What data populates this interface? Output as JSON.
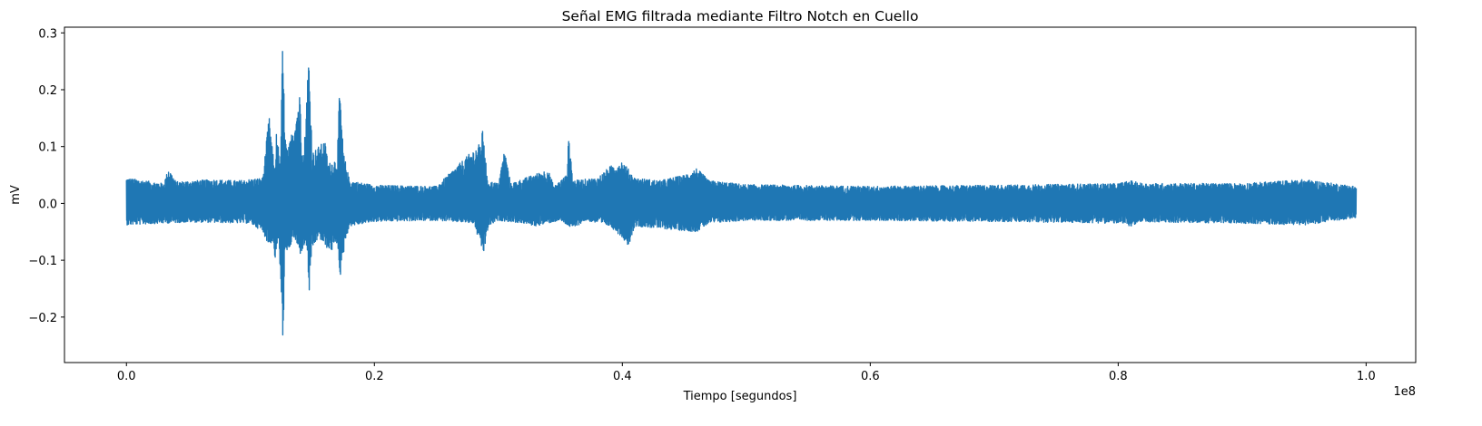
{
  "chart_data": {
    "type": "line",
    "title": "Señal EMG filtrada mediante Filtro Notch en Cuello",
    "xlabel": "Tiempo [segundos]",
    "ylabel": "mV",
    "x_offset_label": "1e8",
    "xlim": [
      -0.05,
      1.04
    ],
    "ylim": [
      -0.28,
      0.31
    ],
    "x_scale": 100000000.0,
    "x_ticks": [
      0.0,
      0.2,
      0.4,
      0.6,
      0.8,
      1.0
    ],
    "x_tick_labels": [
      "0.0",
      "0.2",
      "0.4",
      "0.6",
      "0.8",
      "1.0"
    ],
    "y_ticks": [
      -0.2,
      -0.1,
      0.0,
      0.1,
      0.2,
      0.3
    ],
    "y_tick_labels": [
      "−0.2",
      "−0.1",
      "0.0",
      "0.1",
      "0.2",
      "0.3"
    ],
    "grid": false,
    "legend": "none",
    "series": [
      {
        "color": "#1f77b4",
        "x_range": [
          0.0,
          0.992
        ],
        "upper_envelope": [
          [
            0.0,
            0.045
          ],
          [
            0.03,
            0.035
          ],
          [
            0.034,
            0.062
          ],
          [
            0.04,
            0.038
          ],
          [
            0.07,
            0.042
          ],
          [
            0.09,
            0.04
          ],
          [
            0.11,
            0.045
          ],
          [
            0.115,
            0.155
          ],
          [
            0.12,
            0.05
          ],
          [
            0.121,
            0.14
          ],
          [
            0.124,
            0.06
          ],
          [
            0.126,
            0.285
          ],
          [
            0.128,
            0.12
          ],
          [
            0.13,
            0.09
          ],
          [
            0.14,
            0.195
          ],
          [
            0.143,
            0.08
          ],
          [
            0.147,
            0.265
          ],
          [
            0.15,
            0.09
          ],
          [
            0.155,
            0.1
          ],
          [
            0.16,
            0.11
          ],
          [
            0.163,
            0.07
          ],
          [
            0.17,
            0.08
          ],
          [
            0.172,
            0.205
          ],
          [
            0.175,
            0.09
          ],
          [
            0.18,
            0.04
          ],
          [
            0.2,
            0.032
          ],
          [
            0.25,
            0.03
          ],
          [
            0.285,
            0.105
          ],
          [
            0.288,
            0.135
          ],
          [
            0.291,
            0.04
          ],
          [
            0.3,
            0.035
          ],
          [
            0.305,
            0.095
          ],
          [
            0.31,
            0.035
          ],
          [
            0.34,
            0.06
          ],
          [
            0.345,
            0.03
          ],
          [
            0.355,
            0.05
          ],
          [
            0.357,
            0.125
          ],
          [
            0.36,
            0.04
          ],
          [
            0.38,
            0.045
          ],
          [
            0.39,
            0.065
          ],
          [
            0.4,
            0.075
          ],
          [
            0.41,
            0.045
          ],
          [
            0.43,
            0.04
          ],
          [
            0.45,
            0.05
          ],
          [
            0.46,
            0.062
          ],
          [
            0.47,
            0.04
          ],
          [
            0.5,
            0.033
          ],
          [
            0.6,
            0.03
          ],
          [
            0.7,
            0.032
          ],
          [
            0.8,
            0.035
          ],
          [
            0.81,
            0.04
          ],
          [
            0.82,
            0.035
          ],
          [
            0.9,
            0.035
          ],
          [
            0.95,
            0.042
          ],
          [
            0.992,
            0.03
          ]
        ],
        "lower_envelope": [
          [
            0.0,
            -0.038
          ],
          [
            0.05,
            -0.033
          ],
          [
            0.1,
            -0.035
          ],
          [
            0.11,
            -0.05
          ],
          [
            0.115,
            -0.075
          ],
          [
            0.118,
            -0.065
          ],
          [
            0.12,
            -0.1
          ],
          [
            0.123,
            -0.06
          ],
          [
            0.126,
            -0.255
          ],
          [
            0.128,
            -0.1
          ],
          [
            0.135,
            -0.06
          ],
          [
            0.14,
            -0.09
          ],
          [
            0.145,
            -0.07
          ],
          [
            0.148,
            -0.175
          ],
          [
            0.15,
            -0.08
          ],
          [
            0.155,
            -0.06
          ],
          [
            0.16,
            -0.075
          ],
          [
            0.165,
            -0.085
          ],
          [
            0.17,
            -0.07
          ],
          [
            0.173,
            -0.14
          ],
          [
            0.176,
            -0.07
          ],
          [
            0.18,
            -0.04
          ],
          [
            0.2,
            -0.032
          ],
          [
            0.25,
            -0.03
          ],
          [
            0.28,
            -0.035
          ],
          [
            0.288,
            -0.09
          ],
          [
            0.292,
            -0.04
          ],
          [
            0.3,
            -0.03
          ],
          [
            0.32,
            -0.035
          ],
          [
            0.33,
            -0.04
          ],
          [
            0.35,
            -0.03
          ],
          [
            0.36,
            -0.045
          ],
          [
            0.37,
            -0.03
          ],
          [
            0.39,
            -0.04
          ],
          [
            0.4,
            -0.06
          ],
          [
            0.405,
            -0.075
          ],
          [
            0.41,
            -0.04
          ],
          [
            0.46,
            -0.05
          ],
          [
            0.47,
            -0.035
          ],
          [
            0.5,
            -0.03
          ],
          [
            0.6,
            -0.03
          ],
          [
            0.7,
            -0.032
          ],
          [
            0.8,
            -0.035
          ],
          [
            0.81,
            -0.04
          ],
          [
            0.82,
            -0.033
          ],
          [
            0.9,
            -0.035
          ],
          [
            0.95,
            -0.038
          ],
          [
            0.992,
            -0.025
          ]
        ]
      }
    ]
  }
}
